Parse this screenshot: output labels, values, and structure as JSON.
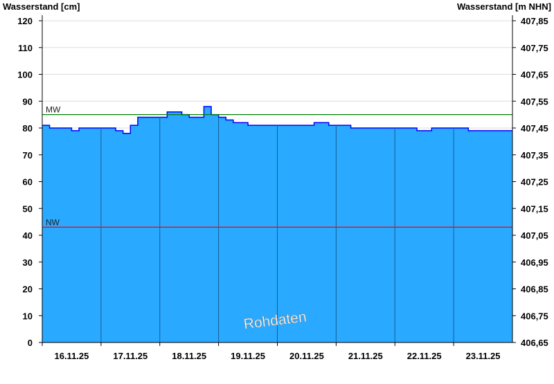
{
  "chart_data": {
    "type": "area",
    "left_axis_label": "Wasserstand [cm]",
    "right_axis_label": "Wasserstand [m NHN]",
    "ylim": [
      0,
      120
    ],
    "y_ticks": [
      0,
      10,
      20,
      30,
      40,
      50,
      60,
      70,
      80,
      90,
      100,
      110,
      120
    ],
    "right_ticks": [
      "406,65",
      "406,75",
      "406,85",
      "406,95",
      "407,05",
      "407,15",
      "407,25",
      "407,35",
      "407,45",
      "407,55",
      "407,65",
      "407,75",
      "407,85"
    ],
    "x_tick_labels": [
      "16.11.25",
      "17.11.25",
      "18.11.25",
      "19.11.25",
      "20.11.25",
      "21.11.25",
      "22.11.25",
      "23.11.25"
    ],
    "x_range_days": [
      0,
      8
    ],
    "grid": true,
    "series_values_3h": [
      81,
      80,
      80,
      80,
      79,
      80,
      80,
      80,
      80,
      80,
      79,
      78,
      81,
      84,
      84,
      84,
      84,
      86,
      86,
      85,
      84,
      84,
      88,
      85,
      84,
      83,
      82,
      82,
      81,
      81,
      81,
      81,
      81,
      81,
      81,
      81,
      81,
      82,
      82,
      81,
      81,
      81,
      80,
      80,
      80,
      80,
      80,
      80,
      80,
      80,
      80,
      79,
      79,
      80,
      80,
      80,
      80,
      80,
      79,
      79,
      79,
      79,
      79,
      79,
      79
    ],
    "reference_lines": [
      {
        "label": "MW",
        "value": 85,
        "color": "#008000"
      },
      {
        "label": "NW",
        "value": 43,
        "color": "#ff0000"
      }
    ],
    "annotation": "Rohdaten",
    "fill_color": "#29a9ff",
    "line_color": "#0000ff"
  }
}
